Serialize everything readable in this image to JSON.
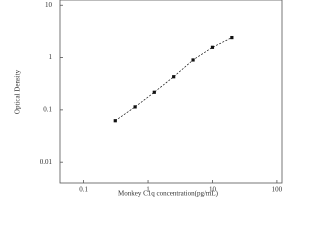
{
  "chart_data": {
    "type": "scatter",
    "x_label": "Monkey C1q concentration(pg/mL)",
    "y_label": "Optical Density",
    "x": [
      0.31,
      0.63,
      1.25,
      2.5,
      5,
      10,
      20
    ],
    "values": [
      0.062,
      0.114,
      0.217,
      0.43,
      0.9,
      1.57,
      2.41
    ],
    "color": "#111111",
    "xlog": true,
    "ylog": true,
    "xlim": [
      0.043,
      120
    ],
    "ylim": [
      0.004,
      12.6
    ],
    "xticks": [
      0.1,
      1,
      10,
      100
    ],
    "yticks": [
      0.01,
      0.1,
      1,
      10
    ],
    "fit_line": true
  }
}
